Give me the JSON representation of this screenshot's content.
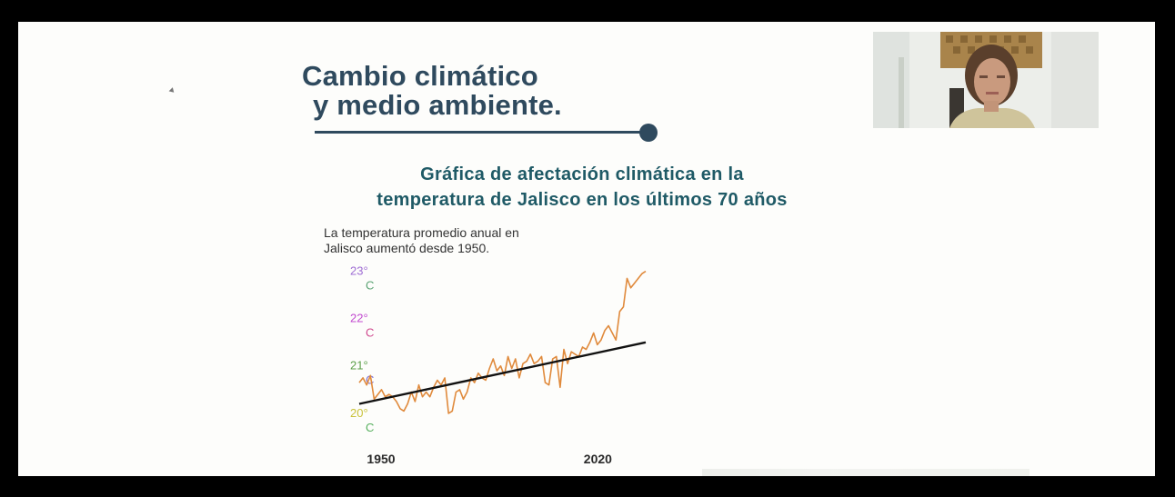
{
  "slide": {
    "title_line1": "Cambio climático",
    "title_line2": "y medio ambiente.",
    "subtitle_line1": "Gráfica de afectación climática en la",
    "subtitle_line2": "temperatura de Jalisco en los últimos 70 años",
    "note_line1": "La temperatura promedio anual en",
    "note_line2": "Jalisco aumentó desde 1950."
  },
  "chart_data": {
    "type": "line",
    "title": "",
    "xlabel": "",
    "ylabel": "",
    "y_ticks": [
      {
        "value": 23,
        "label_top": "23°",
        "label_bottom": "C"
      },
      {
        "value": 22,
        "label_top": "22°",
        "label_bottom": "C"
      },
      {
        "value": 21,
        "label_top": "21°",
        "label_bottom": "C"
      },
      {
        "value": 20,
        "label_top": "20°",
        "label_bottom": "C"
      }
    ],
    "x_ticks": [
      {
        "value": 1950,
        "label": "1950"
      },
      {
        "value": 2020,
        "label": "2020"
      }
    ],
    "xlim": [
      1950,
      2027
    ],
    "ylim": [
      19.9,
      23.2
    ],
    "grid": false,
    "series": [
      {
        "color": "#e08a3c",
        "x": [
          1950,
          1951,
          1952,
          1953,
          1954,
          1955,
          1956,
          1957,
          1958,
          1959,
          1960,
          1961,
          1962,
          1963,
          1964,
          1965,
          1966,
          1967,
          1968,
          1969,
          1970,
          1971,
          1972,
          1973,
          1974,
          1975,
          1976,
          1977,
          1978,
          1979,
          1980,
          1981,
          1982,
          1983,
          1984,
          1985,
          1986,
          1987,
          1988,
          1989,
          1990,
          1991,
          1992,
          1993,
          1994,
          1995,
          1996,
          1997,
          1998,
          1999,
          2000,
          2001,
          2002,
          2003,
          2004,
          2005,
          2006,
          2007,
          2008,
          2009,
          2010,
          2011,
          2012,
          2013,
          2014,
          2015,
          2016,
          2017,
          2018,
          2019,
          2020,
          2021,
          2022,
          2023,
          2024,
          2025,
          2026,
          2027
        ],
        "values": [
          20.8,
          20.9,
          20.75,
          20.95,
          20.45,
          20.55,
          20.65,
          20.5,
          20.55,
          20.5,
          20.4,
          20.25,
          20.2,
          20.35,
          20.6,
          20.4,
          20.75,
          20.5,
          20.6,
          20.5,
          20.7,
          20.85,
          20.75,
          20.9,
          20.15,
          20.2,
          20.6,
          20.65,
          20.45,
          20.6,
          20.9,
          20.8,
          21.0,
          20.9,
          20.85,
          21.1,
          21.3,
          21.05,
          21.15,
          20.95,
          21.35,
          21.1,
          21.3,
          20.9,
          21.2,
          21.25,
          21.4,
          21.2,
          21.25,
          21.35,
          20.8,
          20.75,
          21.3,
          21.35,
          20.7,
          21.5,
          21.2,
          21.45,
          21.4,
          21.35,
          21.55,
          21.5,
          21.65,
          21.85,
          21.6,
          21.7,
          21.9,
          22.0,
          21.85,
          21.7,
          22.3,
          22.4,
          23.0,
          22.8,
          22.9,
          23.0,
          23.1,
          23.15
        ]
      },
      {
        "color": "#111111",
        "x": [
          1950,
          2027
        ],
        "values": [
          20.35,
          21.65
        ]
      }
    ]
  }
}
